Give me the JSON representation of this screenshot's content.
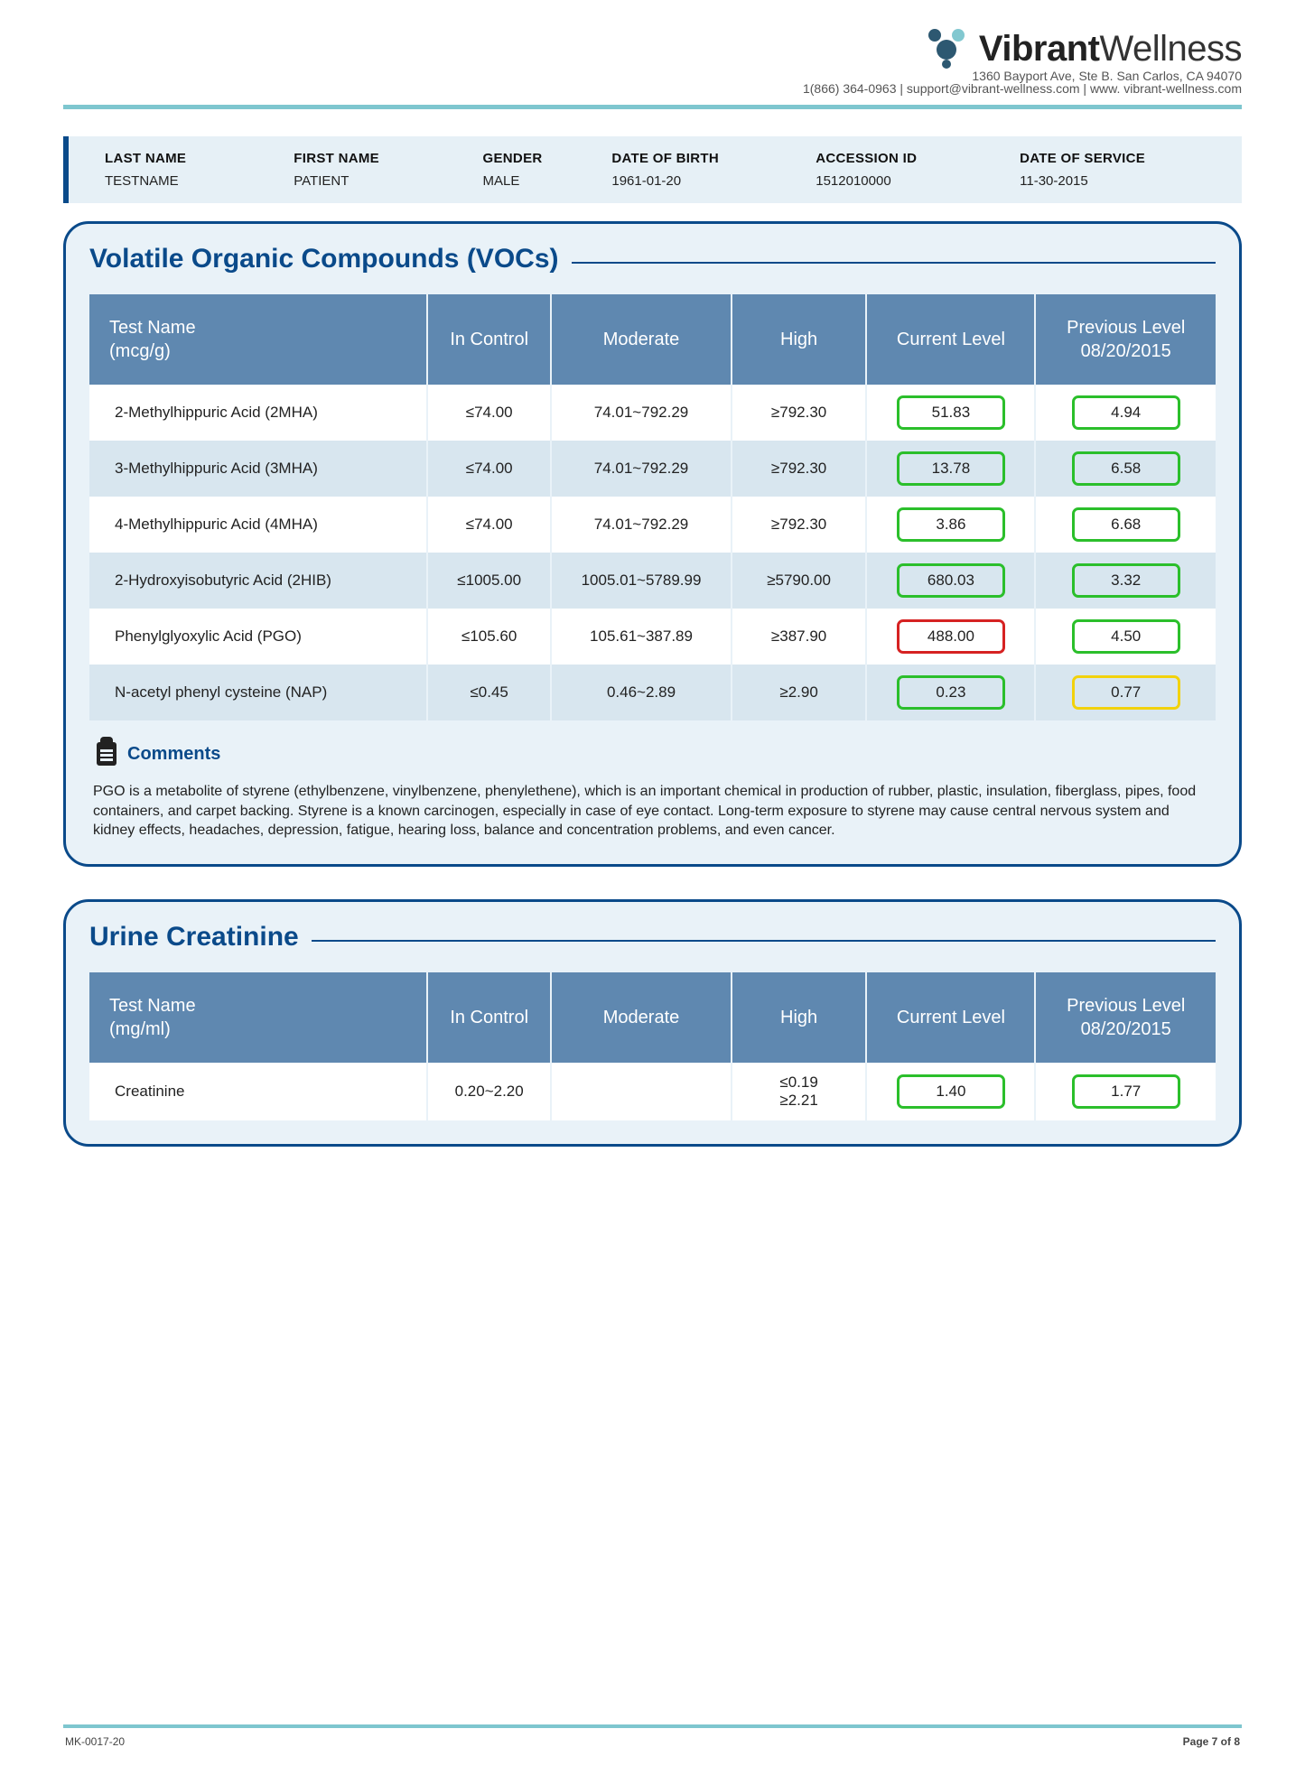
{
  "brand": {
    "name_bold": "Vibrant",
    "name_light": "Wellness",
    "address": "1360 Bayport Ave, Ste B. San Carlos, CA 94070",
    "contact": "1(866) 364-0963 | support@vibrant-wellness.com | www. vibrant-wellness.com"
  },
  "patient": {
    "labels": {
      "last": "LAST NAME",
      "first": "FIRST NAME",
      "gender": "GENDER",
      "dob": "DATE OF BIRTH",
      "accession": "ACCESSION ID",
      "dos": "DATE OF SERVICE"
    },
    "values": {
      "last": "TESTNAME",
      "first": "PATIENT",
      "gender": "MALE",
      "dob": "1961-01-20",
      "accession": "1512010000",
      "dos": "11-30-2015"
    }
  },
  "voc": {
    "title": "Volatile Organic Compounds (VOCs)",
    "header": {
      "name": "Test Name\n(mcg/g)",
      "ctrl": "In Control",
      "mod": "Moderate",
      "high": "High",
      "curr": "Current Level",
      "prev": "Previous Level 08/20/2015"
    },
    "rows": [
      {
        "name": "2-Methylhippuric Acid (2MHA)",
        "ctrl": "≤74.00",
        "mod": "74.01~792.29",
        "high": "≥792.30",
        "curr": "51.83",
        "curr_c": "green",
        "prev": "4.94",
        "prev_c": "green"
      },
      {
        "name": "3-Methylhippuric Acid (3MHA)",
        "ctrl": "≤74.00",
        "mod": "74.01~792.29",
        "high": "≥792.30",
        "curr": "13.78",
        "curr_c": "green",
        "prev": "6.58",
        "prev_c": "green"
      },
      {
        "name": "4-Methylhippuric Acid (4MHA)",
        "ctrl": "≤74.00",
        "mod": "74.01~792.29",
        "high": "≥792.30",
        "curr": "3.86",
        "curr_c": "green",
        "prev": "6.68",
        "prev_c": "green"
      },
      {
        "name": "2-Hydroxyisobutyric Acid (2HIB)",
        "ctrl": "≤1005.00",
        "mod": "1005.01~5789.99",
        "high": "≥5790.00",
        "curr": "680.03",
        "curr_c": "green",
        "prev": "3.32",
        "prev_c": "green"
      },
      {
        "name": "Phenylglyoxylic Acid (PGO)",
        "ctrl": "≤105.60",
        "mod": "105.61~387.89",
        "high": "≥387.90",
        "curr": "488.00",
        "curr_c": "red",
        "prev": "4.50",
        "prev_c": "green"
      },
      {
        "name": "N-acetyl phenyl cysteine (NAP)",
        "ctrl": "≤0.45",
        "mod": "0.46~2.89",
        "high": "≥2.90",
        "curr": "0.23",
        "curr_c": "green",
        "prev": "0.77",
        "prev_c": "yellow"
      }
    ],
    "comments_label": "Comments",
    "comments": "PGO is a metabolite of styrene (ethylbenzene, vinylbenzene, phenylethene), which is an important chemical in production of rubber, plastic, insulation, fiberglass, pipes, food containers, and carpet backing.  Styrene is a known carcinogen, especially in case of eye contact. Long-term exposure to styrene may cause central nervous system and kidney effects, headaches, depression, fatigue, hearing loss, balance and concentration problems, and even cancer."
  },
  "creatinine": {
    "title": "Urine Creatinine",
    "header": {
      "name": "Test Name\n(mg/ml)",
      "ctrl": "In Control",
      "mod": "Moderate",
      "high": "High",
      "curr": "Current Level",
      "prev": "Previous Level 08/20/2015"
    },
    "rows": [
      {
        "name": "Creatinine",
        "ctrl": "0.20~2.20",
        "mod": "",
        "high": "≤0.19\n≥2.21",
        "curr": "1.40",
        "curr_c": "green",
        "prev": "1.77",
        "prev_c": "green"
      }
    ]
  },
  "footer": {
    "code": "MK-0017-20",
    "page": "Page 7 of 8"
  },
  "colors": {
    "primary": "#0a4a8a",
    "header_bg": "#5f88b0",
    "panel_bg": "#e9f2f8",
    "row_alt": "#d8e6ef",
    "accent_rule": "#7ec6cf",
    "box_green": "#2bbf2b",
    "box_red": "#d62222",
    "box_yellow": "#f2d20c"
  }
}
